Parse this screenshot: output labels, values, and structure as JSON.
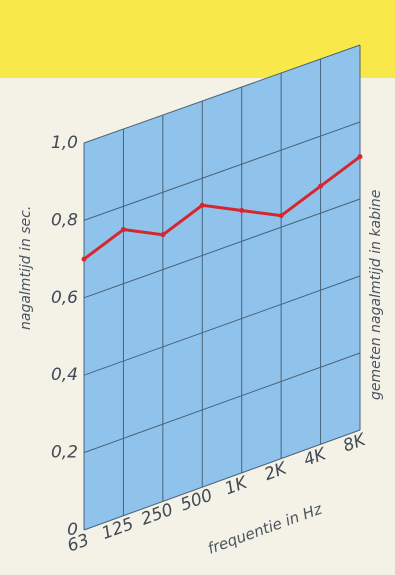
{
  "colors": {
    "page_background": "#f4f1e6",
    "yellow_band": "#f8e84a",
    "panel_fill": "#8fc3ec",
    "grid": "#4a6378",
    "axis_text": "#3f4a55",
    "series": "#d6262e"
  },
  "chart_data": {
    "type": "line",
    "ylabel": "nagalmtijd in sec.",
    "xlabel": "frequentie in Hz",
    "right_label": "gemeten nagalmtijd in kabine",
    "x": [
      "63",
      "125",
      "250",
      "500",
      "1K",
      "2K",
      "4K",
      "8K"
    ],
    "y_ticks": [
      "0",
      "0,2",
      "0,4",
      "0,6",
      "0,8",
      "1,0"
    ],
    "ylim": [
      0,
      1.0
    ],
    "grid": true,
    "series": [
      {
        "values": [
          0.7,
          0.74,
          0.69,
          0.73,
          0.68,
          0.63,
          0.67,
          0.71
        ]
      }
    ]
  }
}
